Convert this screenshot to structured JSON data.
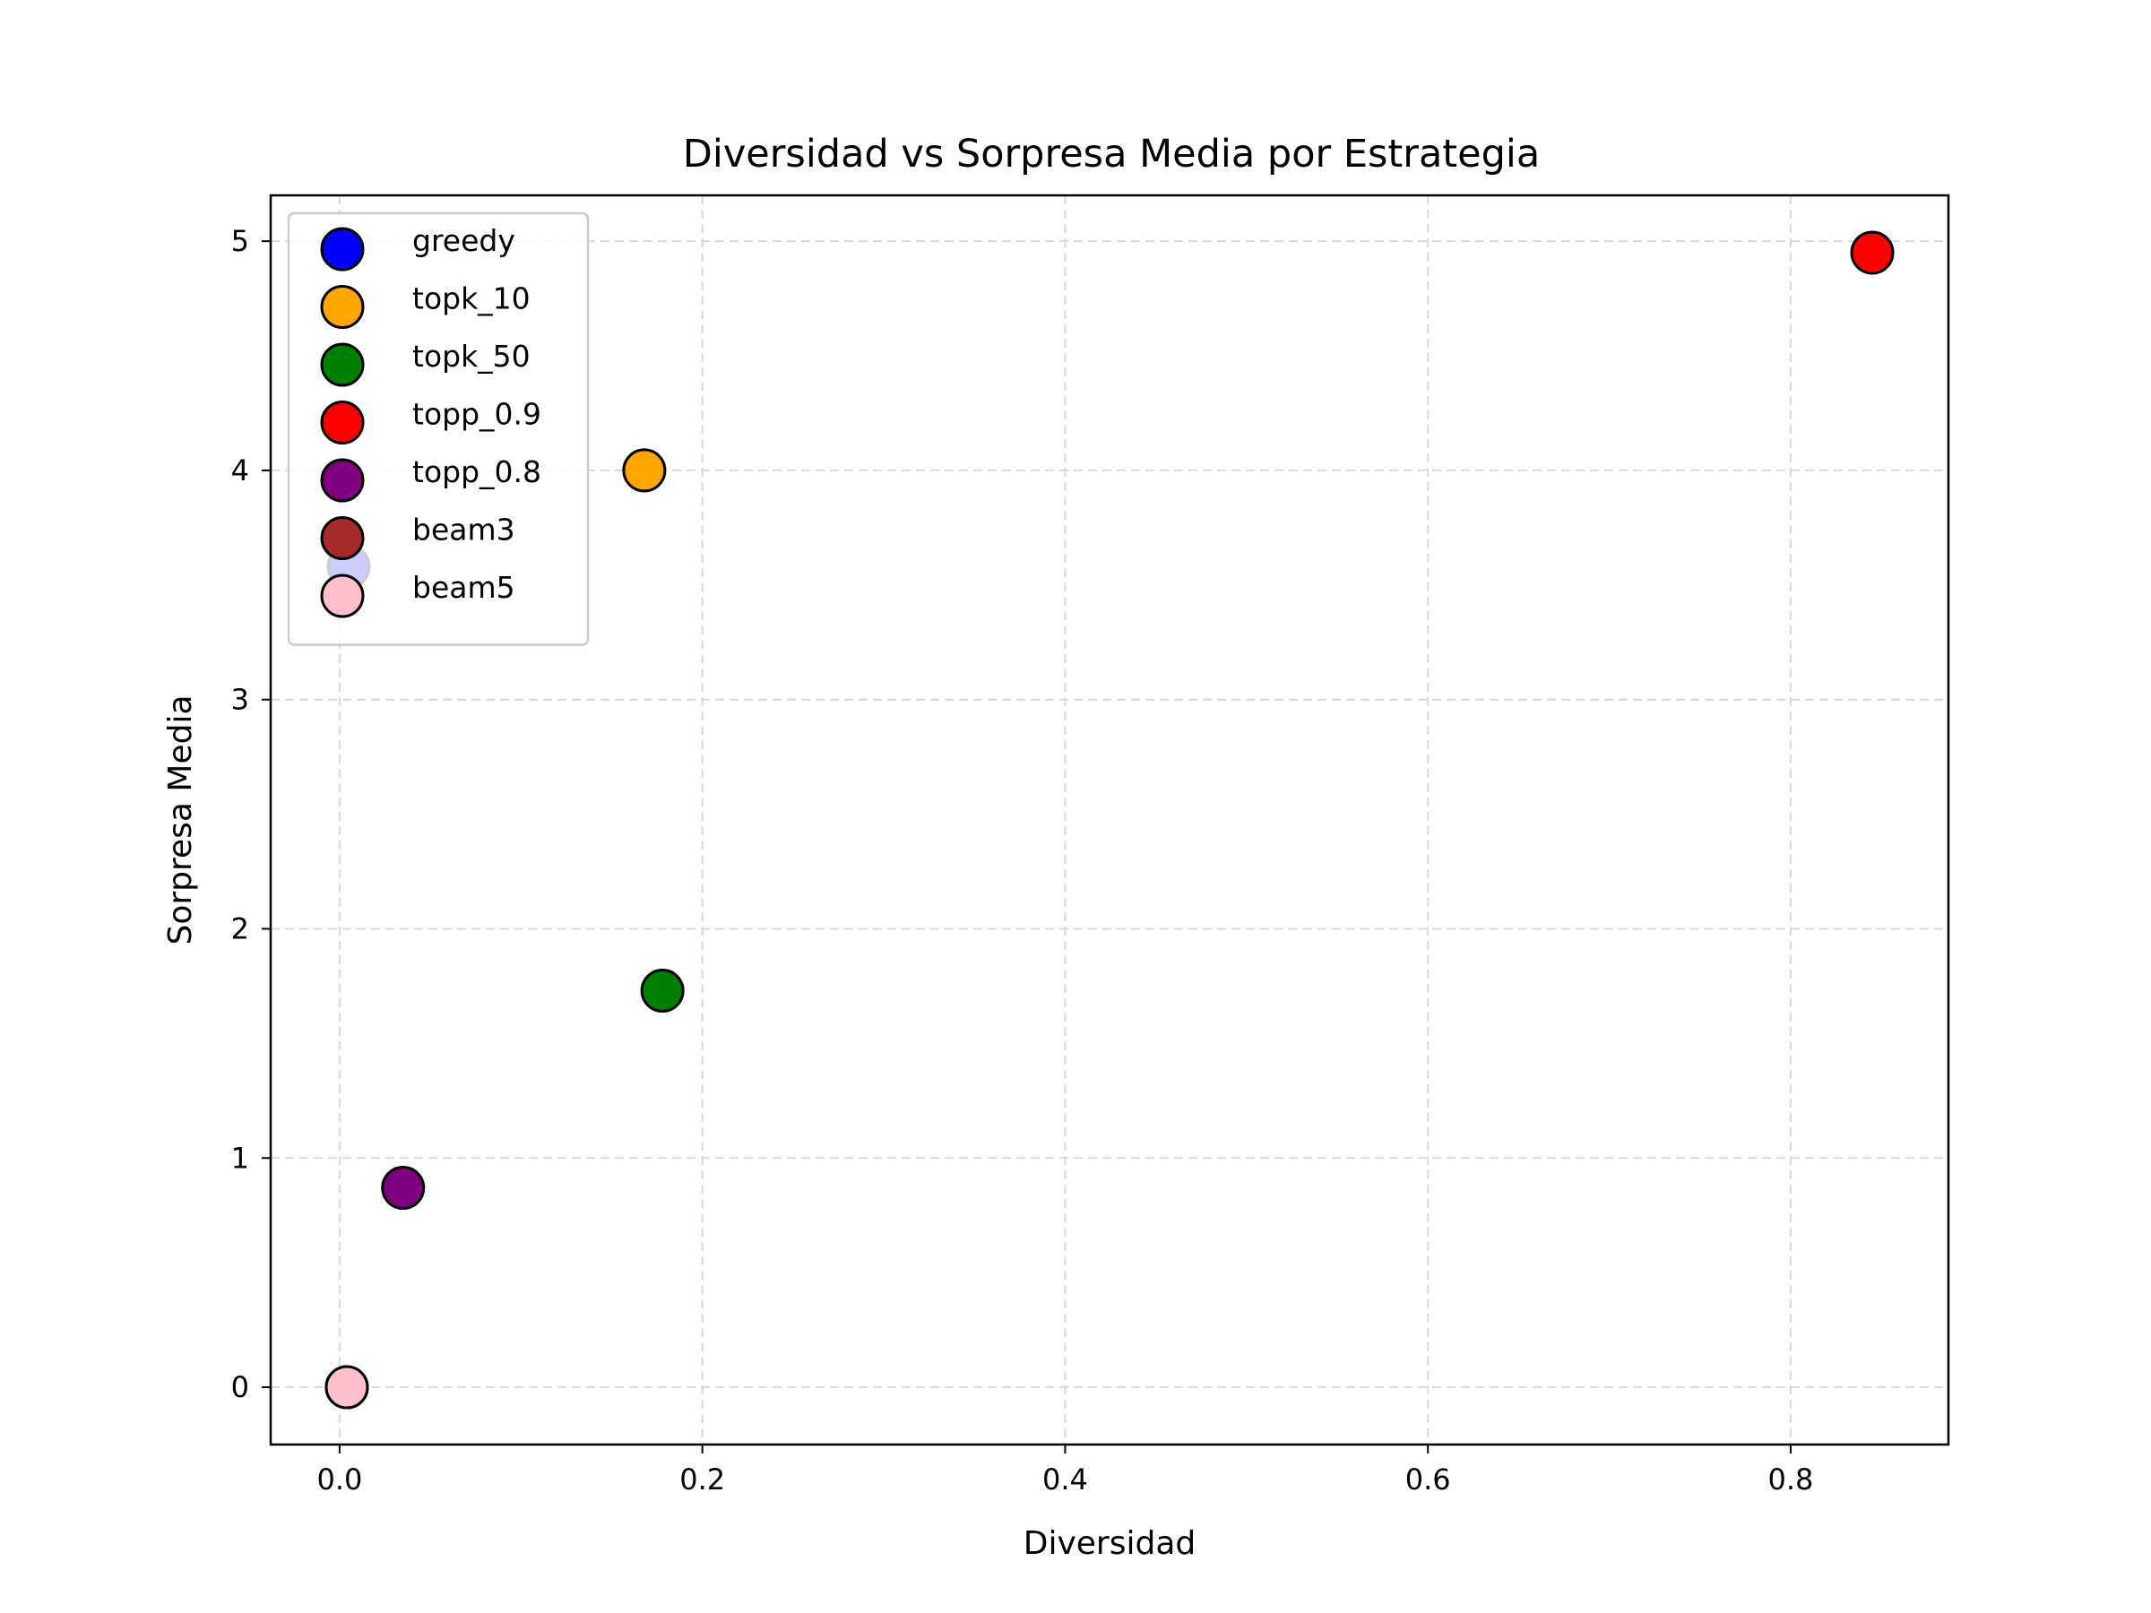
{
  "chart_data": {
    "type": "scatter",
    "title": "Diversidad vs Sorpresa Media por Estrategia",
    "xlabel": "Diversidad",
    "ylabel": "Sorpresa Media",
    "xlim": [
      -0.038,
      0.887
    ],
    "ylim": [
      -0.25,
      5.2
    ],
    "xticks": [
      0.0,
      0.2,
      0.4,
      0.6,
      0.8
    ],
    "xtick_labels": [
      "0.0",
      "0.2",
      "0.4",
      "0.6",
      "0.8"
    ],
    "yticks": [
      0,
      1,
      2,
      3,
      4,
      5
    ],
    "ytick_labels": [
      "0",
      "1",
      "2",
      "3",
      "4",
      "5"
    ],
    "grid": true,
    "legend_position": "top-left",
    "series": [
      {
        "name": "greedy",
        "color": "#0000ff",
        "x": 0.005,
        "y": 3.58
      },
      {
        "name": "topk_10",
        "color": "#ffa500",
        "x": 0.168,
        "y": 4.0
      },
      {
        "name": "topk_50",
        "color": "#008000",
        "x": 0.178,
        "y": 1.73
      },
      {
        "name": "topp_0.9",
        "color": "#ff0000",
        "x": 0.845,
        "y": 4.95
      },
      {
        "name": "topp_0.8",
        "color": "#800080",
        "x": 0.035,
        "y": 0.87
      },
      {
        "name": "beam3",
        "color": "#a52a2a",
        "x": 0.004,
        "y": 0.0
      },
      {
        "name": "beam5",
        "color": "#ffc0cb",
        "x": 0.004,
        "y": 0.0
      }
    ]
  }
}
